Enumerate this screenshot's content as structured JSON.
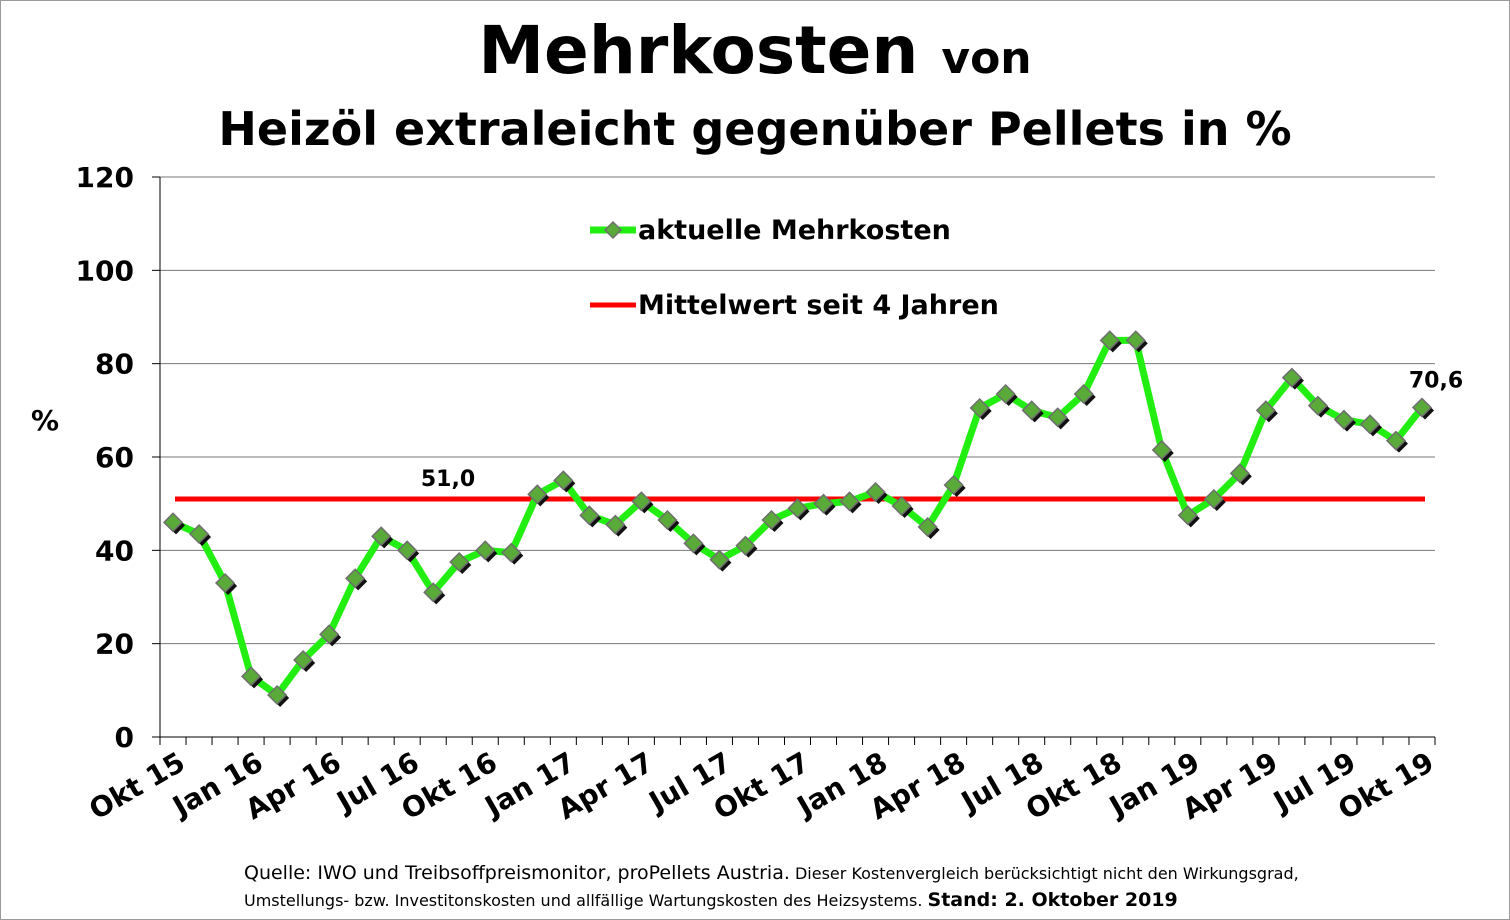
{
  "title": {
    "main": "Mehrkosten",
    "main_suffix": "von",
    "subtitle": "Heizöl extraleicht gegenüber Pellets in %"
  },
  "footer": {
    "source": "Quelle: IWO und Treibsoffpreismonitor, proPellets Austria.",
    "note_part1": "Dieser Kostenvergleich berücksichtigt nicht den Wirkungsgrad,",
    "note_part2": "Umstellungs- bzw. Investitonskosten und allfällige Wartungskosten des Heizsystems.",
    "stand": "Stand: 2. Oktober 2019"
  },
  "colors": {
    "series_line": "#22ee11",
    "marker_fill": "#5aaa3a",
    "marker_edge": "#6e6e6e",
    "mean_line": "#ff0000",
    "grid": "#777777"
  },
  "chart_data": {
    "type": "line",
    "ylabel": "%",
    "ylim": [
      0,
      120
    ],
    "yticks": [
      0,
      20,
      40,
      60,
      80,
      100,
      120
    ],
    "grid": true,
    "legend_placement": "top-center",
    "x_tick_labels": [
      "Okt 15",
      "Jan 16",
      "Apr 16",
      "Jul 16",
      "Okt 16",
      "Jan 17",
      "Apr 17",
      "Jul 17",
      "Okt 17",
      "Jan 18",
      "Apr 18",
      "Jul 18",
      "Okt 18",
      "Jan 19",
      "Apr 19",
      "Jul 19",
      "Okt 19"
    ],
    "x": [
      "Okt 15",
      "Nov 15",
      "Dez 15",
      "Jan 16",
      "Feb 16",
      "Mär 16",
      "Apr 16",
      "Mai 16",
      "Jun 16",
      "Jul 16",
      "Aug 16",
      "Sep 16",
      "Okt 16",
      "Nov 16",
      "Dez 16",
      "Jan 17",
      "Feb 17",
      "Mär 17",
      "Apr 17",
      "Mai 17",
      "Jun 17",
      "Jul 17",
      "Aug 17",
      "Sep 17",
      "Okt 17",
      "Nov 17",
      "Dez 17",
      "Jan 18",
      "Feb 18",
      "Mär 18",
      "Apr 18",
      "Mai 18",
      "Jun 18",
      "Jul 18",
      "Aug 18",
      "Sep 18",
      "Okt 18",
      "Nov 18",
      "Dez 18",
      "Jan 19",
      "Feb 19",
      "Mär 19",
      "Apr 19",
      "Mai 19",
      "Jun 19",
      "Jul 19",
      "Aug 19",
      "Sep 19",
      "Okt 19"
    ],
    "series": [
      {
        "name": "aktuelle Mehrkosten",
        "type": "line",
        "values": [
          46,
          43.5,
          33,
          13,
          9,
          16.5,
          22,
          34,
          43,
          40,
          31,
          37.5,
          40,
          39.5,
          52,
          55,
          47.5,
          45.5,
          50.5,
          46.5,
          41.5,
          38,
          41,
          46.5,
          49,
          50,
          50.5,
          52.5,
          49.5,
          45,
          54,
          70.5,
          73.5,
          70,
          68.5,
          73.5,
          85,
          85,
          61.5,
          47.5,
          51,
          56.5,
          70,
          77,
          71,
          68,
          67,
          63.5,
          70.6
        ],
        "end_label": "70,6"
      },
      {
        "name": "Mittelwert seit 4 Jahren",
        "type": "hline",
        "value": 51.0,
        "label": "51,0"
      }
    ]
  }
}
